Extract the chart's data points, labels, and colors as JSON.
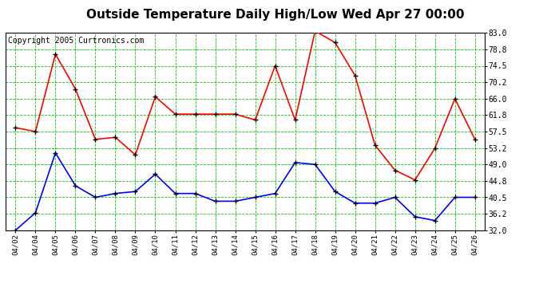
{
  "title": "Outside Temperature Daily High/Low Wed Apr 27 00:00",
  "copyright": "Copyright 2005 Curtronics.com",
  "dates": [
    "04/02",
    "04/04",
    "04/05",
    "04/06",
    "04/07",
    "04/08",
    "04/09",
    "04/10",
    "04/11",
    "04/12",
    "04/13",
    "04/14",
    "04/15",
    "04/16",
    "04/17",
    "04/18",
    "04/19",
    "04/20",
    "04/21",
    "04/22",
    "04/23",
    "04/24",
    "04/25",
    "04/26"
  ],
  "high_temps": [
    58.5,
    57.5,
    77.5,
    68.5,
    55.5,
    56.0,
    51.5,
    66.5,
    62.0,
    62.0,
    62.0,
    62.0,
    60.5,
    74.5,
    60.5,
    83.5,
    80.5,
    72.0,
    54.0,
    47.5,
    45.0,
    53.2,
    66.0,
    55.5
  ],
  "low_temps": [
    32.0,
    36.5,
    52.0,
    43.5,
    40.5,
    41.5,
    42.0,
    46.5,
    41.5,
    41.5,
    39.5,
    39.5,
    40.5,
    41.5,
    49.5,
    49.0,
    42.0,
    39.0,
    39.0,
    40.5,
    35.5,
    34.5,
    40.5,
    40.5
  ],
  "high_color": "#ff0000",
  "low_color": "#0000ff",
  "background_color": "#ffffff",
  "grid_color": "#00cc00",
  "title_fontsize": 11,
  "copyright_fontsize": 7,
  "ylim": [
    32.0,
    83.0
  ],
  "yticks": [
    32.0,
    36.2,
    40.5,
    44.8,
    49.0,
    53.2,
    57.5,
    61.8,
    66.0,
    70.2,
    74.5,
    78.8,
    83.0
  ],
  "linewidth": 1.2,
  "marker_size": 4,
  "fig_width": 6.9,
  "fig_height": 3.75,
  "dpi": 100
}
